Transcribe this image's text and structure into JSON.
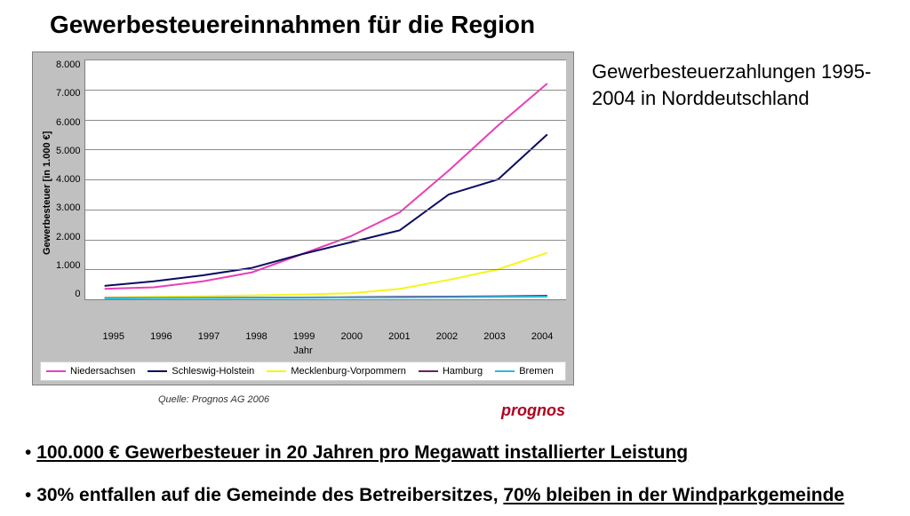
{
  "title": "Gewerbesteuereinnahmen für die Region",
  "description": "Gewerbesteuerzahlungen 1995-2004 in Norddeutschland",
  "chart": {
    "type": "line",
    "ylabel": "Gewerbesteuer [in 1.000 €]",
    "xlabel": "Jahr",
    "ylim": [
      0,
      8000
    ],
    "ytick_step": 1000,
    "yticks": [
      "8.000",
      "7.000",
      "6.000",
      "5.000",
      "4.000",
      "3.000",
      "2.000",
      "1.000",
      "0"
    ],
    "categories": [
      "1995",
      "1996",
      "1997",
      "1998",
      "1999",
      "2000",
      "2001",
      "2002",
      "2003",
      "2004"
    ],
    "background_color": "#c0c0c0",
    "plot_background": "#ffffff",
    "grid_color": "#808080",
    "line_width": 2,
    "series": [
      {
        "name": "Niedersachsen",
        "color": "#e83fb8",
        "values": [
          350,
          400,
          600,
          900,
          1500,
          2100,
          2900,
          4300,
          5800,
          7200
        ]
      },
      {
        "name": "Schleswig-Holstein",
        "color": "#0b0b60",
        "values": [
          450,
          600,
          800,
          1050,
          1500,
          1900,
          2300,
          3500,
          4000,
          5500
        ]
      },
      {
        "name": "Mecklenburg-Vorpommern",
        "color": "#f5f51a",
        "values": [
          60,
          80,
          100,
          130,
          160,
          200,
          350,
          650,
          1000,
          1550
        ]
      },
      {
        "name": "Hamburg",
        "color": "#6b1a6b",
        "values": [
          40,
          45,
          50,
          55,
          60,
          70,
          80,
          90,
          100,
          120
        ]
      },
      {
        "name": "Bremen",
        "color": "#2fbad6",
        "values": [
          30,
          35,
          40,
          45,
          50,
          55,
          60,
          70,
          80,
          90
        ]
      }
    ],
    "source": "Quelle: Prognos AG 2006",
    "brand": "prognos"
  },
  "bullets": {
    "b1_prefix": "• ",
    "b1_underlined": "100.000 € Gewerbesteuer in 20 Jahren pro Megawatt installierter Leistung",
    "b2_prefix": "• ",
    "b2_plain": "30% entfallen auf die Gemeinde des Betreibersitzes, ",
    "b2_underlined": "70% bleiben in der Windparkgemeinde"
  }
}
